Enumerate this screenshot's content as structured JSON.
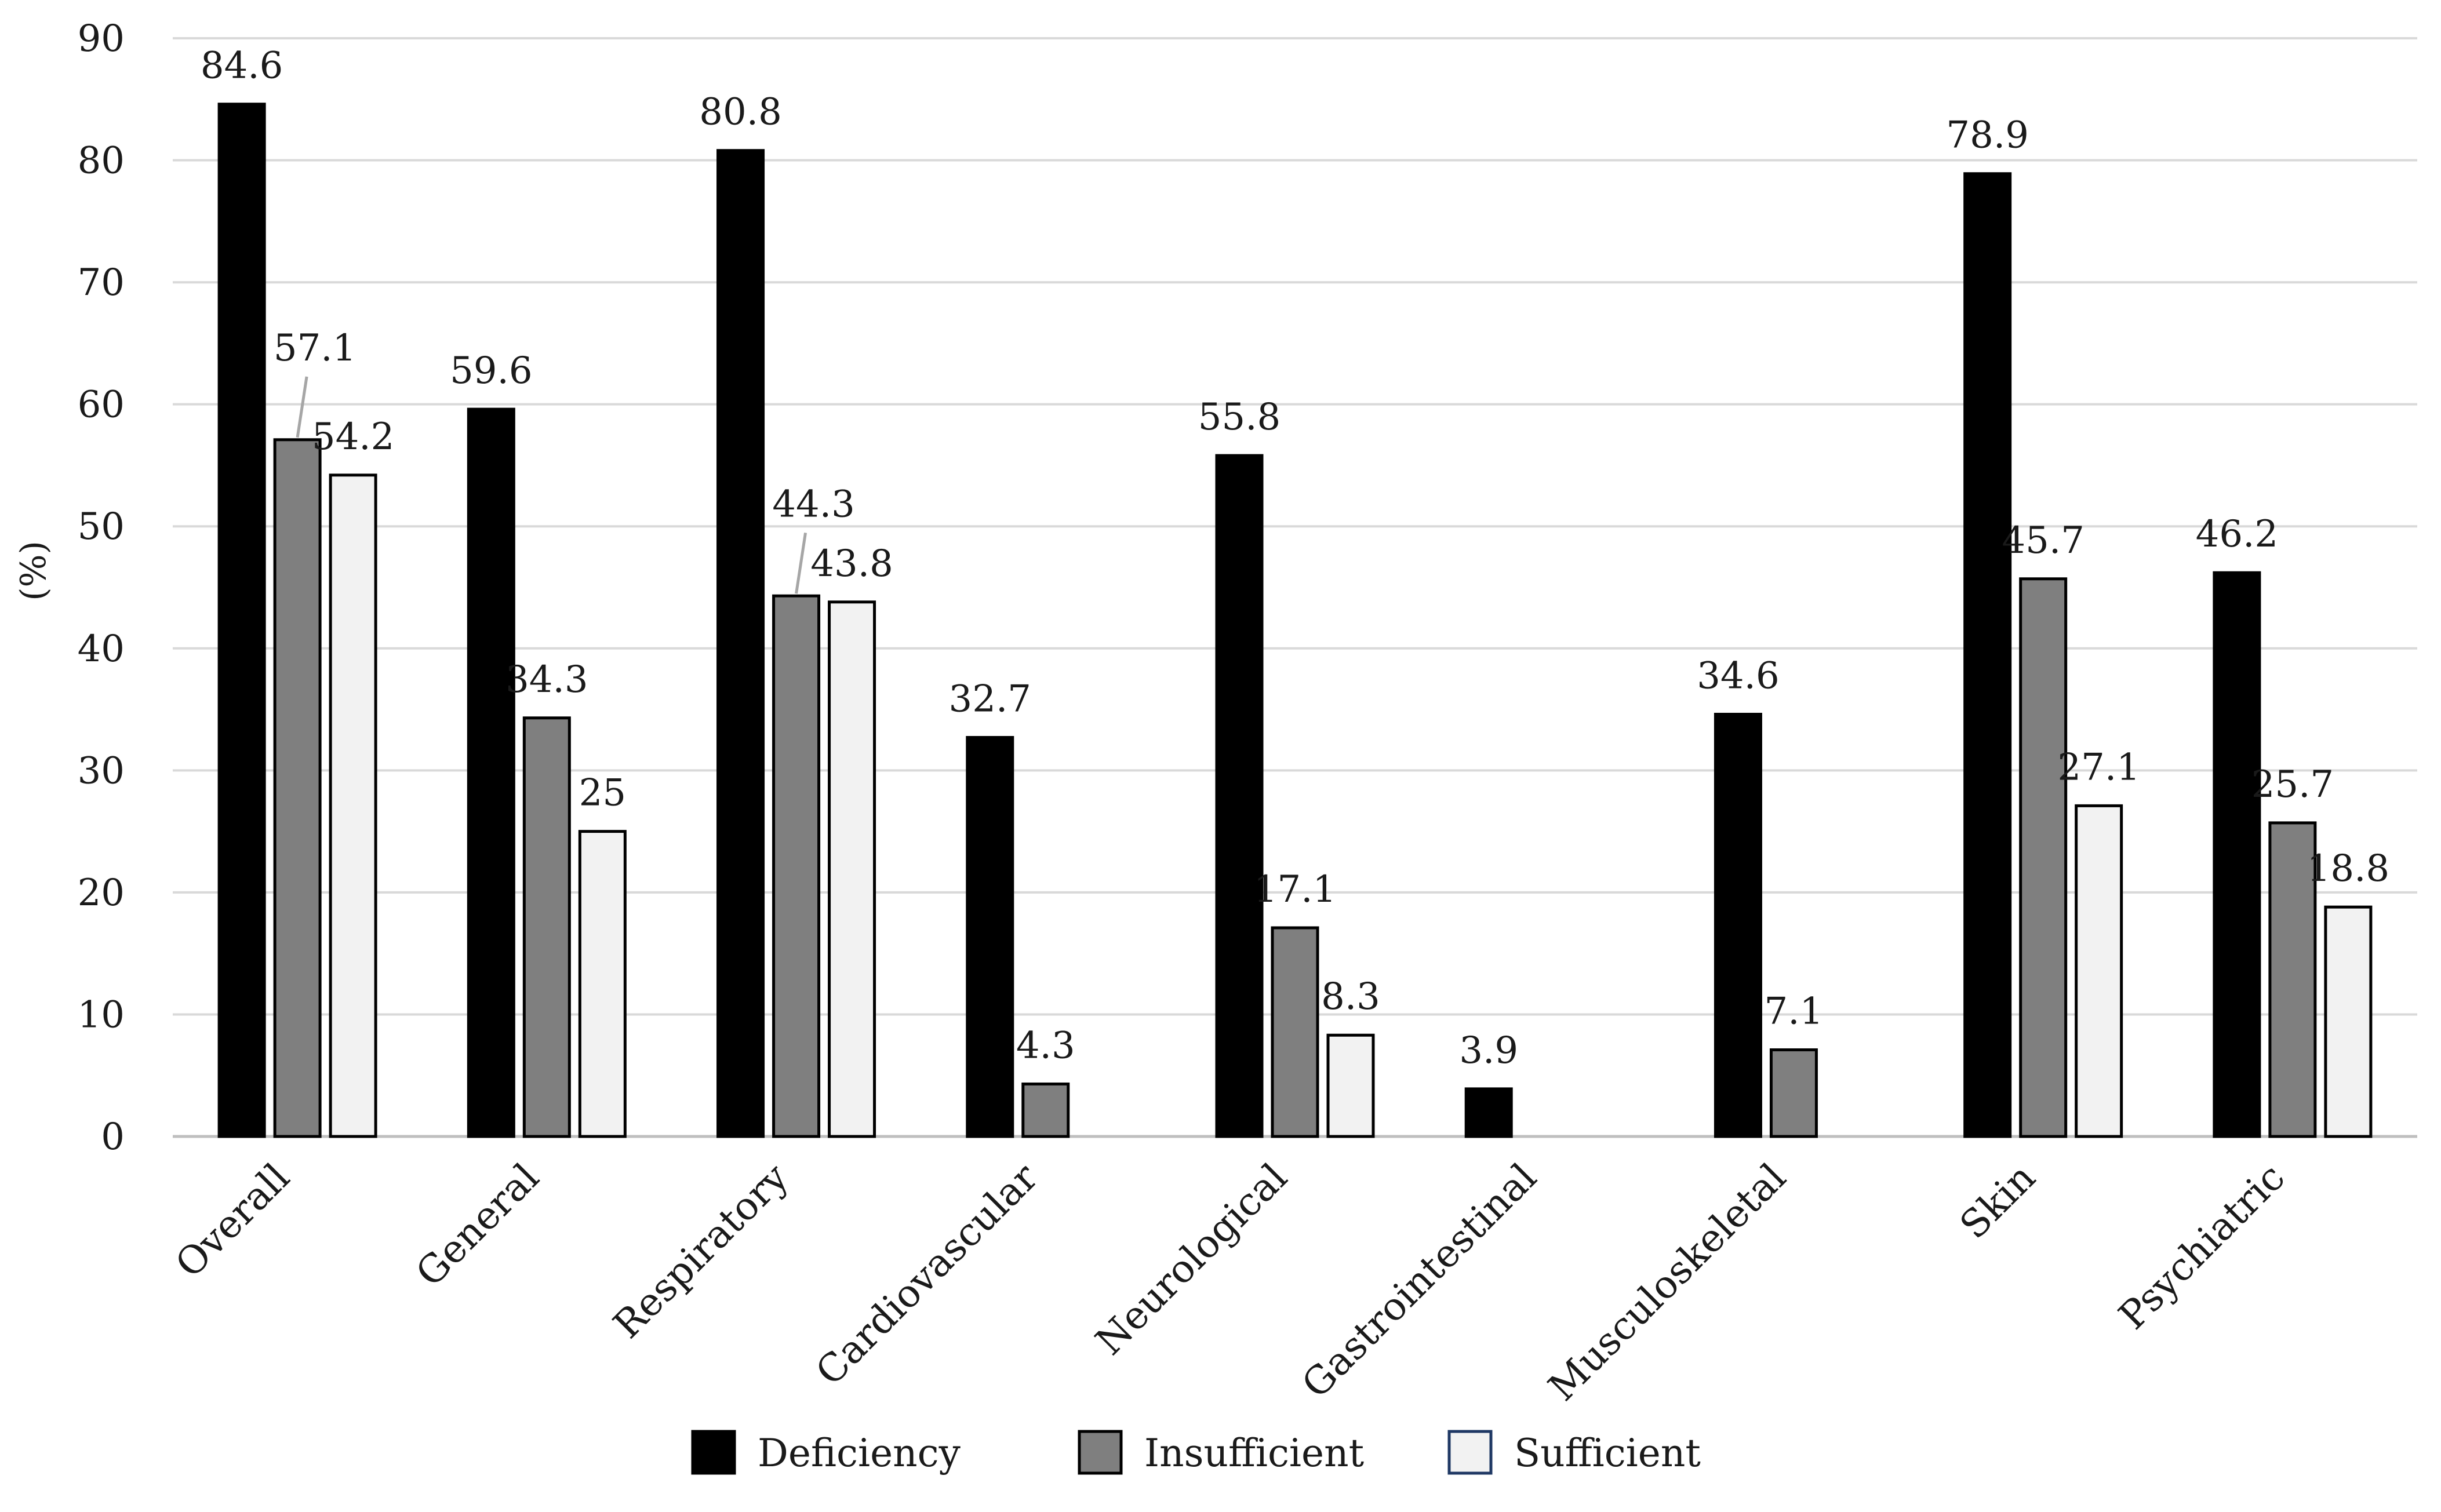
{
  "chart_data": {
    "type": "bar",
    "title": "",
    "xlabel": "",
    "ylabel": "(%)",
    "ylim": [
      0,
      90
    ],
    "yticks": [
      0,
      10,
      20,
      30,
      40,
      50,
      60,
      70,
      80,
      90
    ],
    "grid": true,
    "legend_position": "bottom",
    "categories": [
      "Overall",
      "General",
      "Respiratory",
      "Cardiovascular",
      "Neurological",
      "Gastrointestinal",
      "Musculoskeletal",
      "Skin",
      "Psychiatric"
    ],
    "series": [
      {
        "name": "Deficiency",
        "color": "#000000",
        "values": [
          84.6,
          59.6,
          80.8,
          32.7,
          55.8,
          3.9,
          34.6,
          78.9,
          46.2
        ],
        "labels": [
          "84.6",
          "59.6",
          "80.8",
          "32.7",
          "55.8",
          "3.9",
          "34.6",
          "78.9",
          "46.2"
        ]
      },
      {
        "name": "Insufficient",
        "color": "#7f7f7f",
        "values": [
          57.1,
          34.3,
          44.3,
          4.3,
          17.1,
          null,
          7.1,
          45.7,
          25.7
        ],
        "labels": [
          "57.1",
          "34.3",
          "44.3",
          "4.3",
          "17.1",
          null,
          "7.1",
          "45.7",
          "25.7"
        ]
      },
      {
        "name": "Sufficient",
        "color": "#f2f2f2",
        "values": [
          54.2,
          25,
          43.8,
          null,
          8.3,
          null,
          null,
          27.1,
          18.8
        ],
        "labels": [
          "54.2",
          "25",
          "43.8",
          null,
          "8.3",
          null,
          null,
          "27.1",
          "18.8"
        ]
      }
    ]
  }
}
